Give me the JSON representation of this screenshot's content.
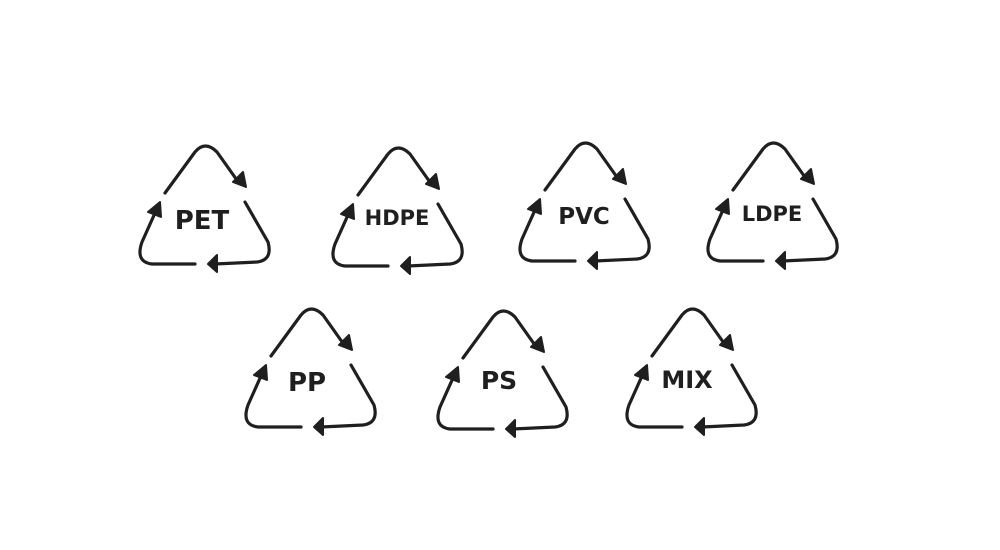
{
  "ink_color": "#1f1f1f",
  "background_color": "#ffffff",
  "symbols": [
    {
      "label": "PET",
      "icon": "recycle-triangle-icon"
    },
    {
      "label": "HDPE",
      "icon": "recycle-triangle-icon"
    },
    {
      "label": "PVC",
      "icon": "recycle-triangle-icon"
    },
    {
      "label": "LDPE",
      "icon": "recycle-triangle-icon"
    },
    {
      "label": "PP",
      "icon": "recycle-triangle-icon"
    },
    {
      "label": "PS",
      "icon": "recycle-triangle-icon"
    },
    {
      "label": "MIX",
      "icon": "recycle-triangle-icon"
    }
  ]
}
